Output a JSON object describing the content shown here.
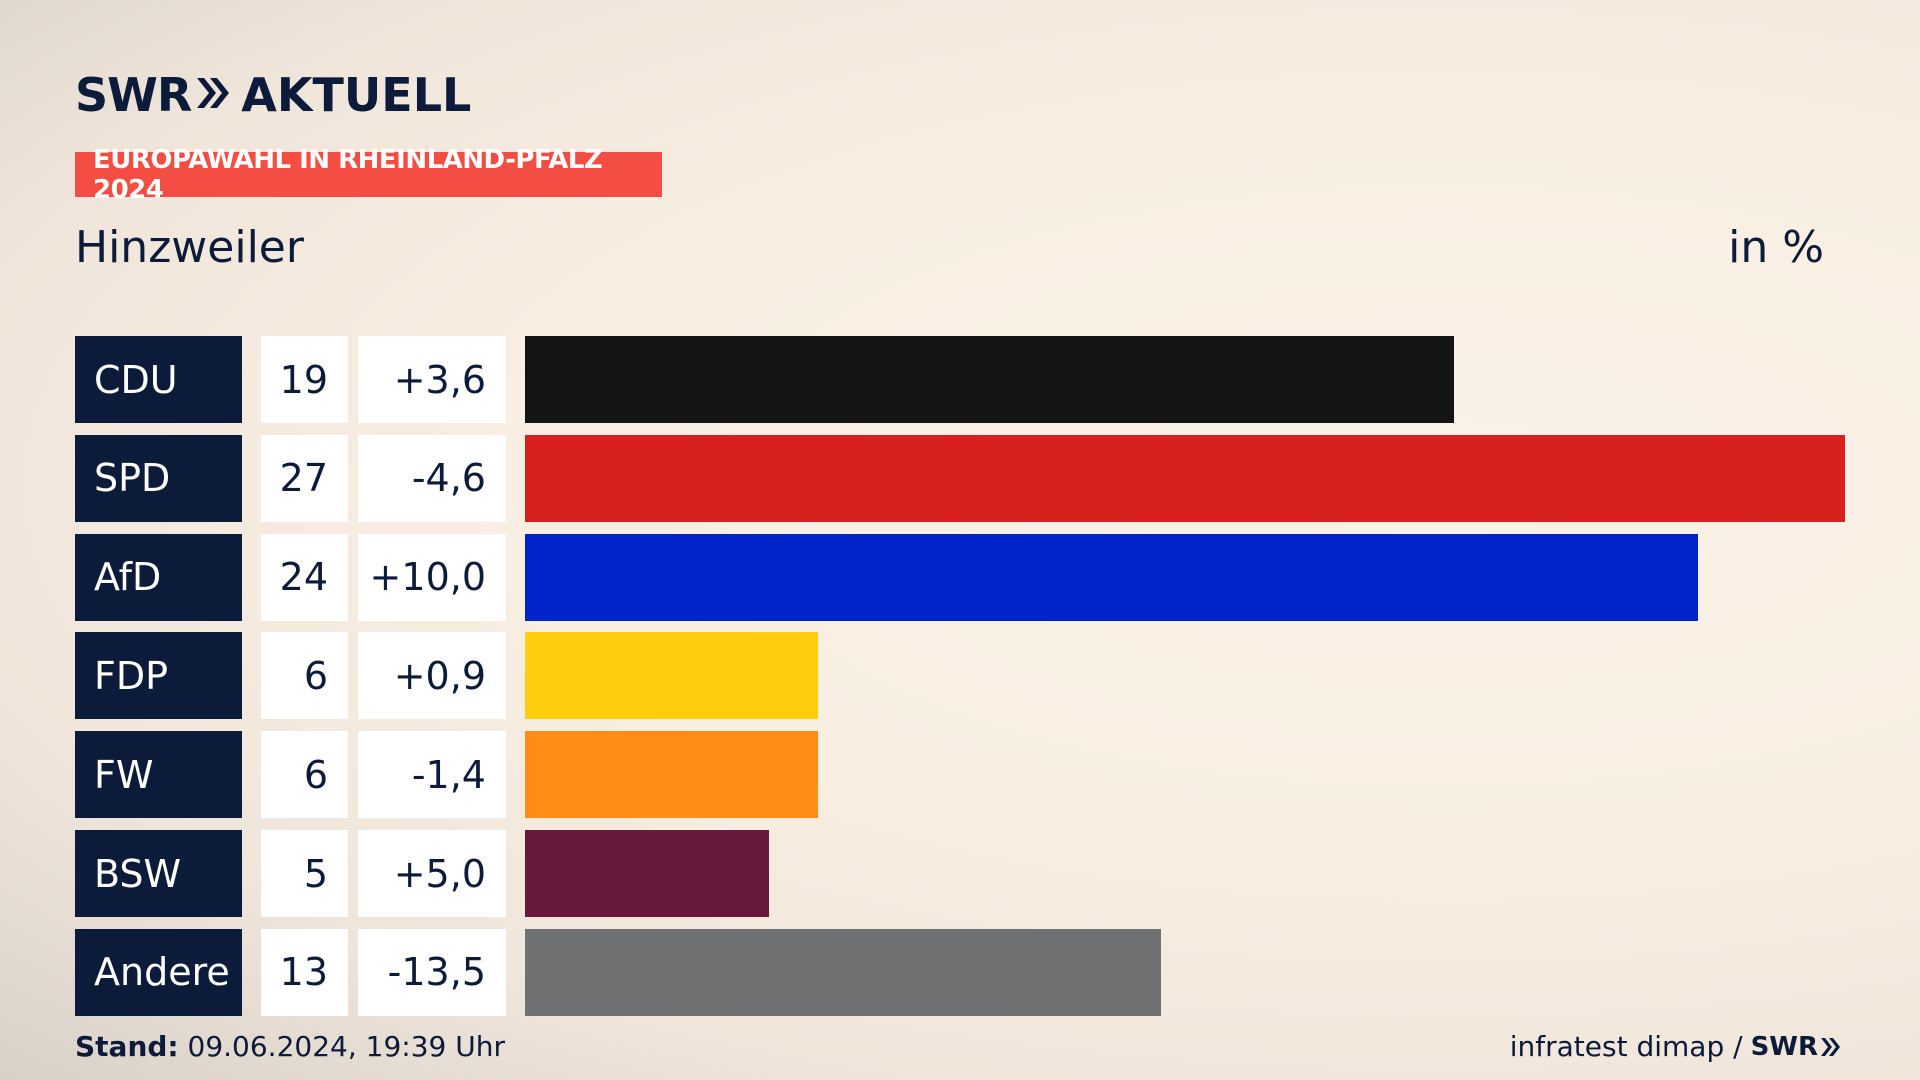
{
  "header": {
    "logo_swr": "SWR",
    "logo_aktuell": "AKTUELL",
    "banner": "EUROPAWAHL IN RHEINLAND-PFALZ 2024",
    "place": "Hinzweiler",
    "unit": "in %"
  },
  "footer": {
    "stand_label": "Stand:",
    "stand_value": " 09.06.2024, 19:39 Uhr",
    "source": "infratest dimap /",
    "source_logo": "SWR"
  },
  "colors": {
    "navy": "#0d1b3a",
    "banner": "#f44d43"
  },
  "chart_data": {
    "type": "bar",
    "categories": [
      "CDU",
      "SPD",
      "AfD",
      "FDP",
      "FW",
      "BSW",
      "Andere"
    ],
    "values": [
      19,
      27,
      24,
      6,
      6,
      5,
      13
    ],
    "value_labels": [
      "19",
      "27",
      "24",
      "6",
      "6",
      "5",
      "13"
    ],
    "diff_labels": [
      "+3,6",
      "-4,6",
      "+10,0",
      "+0,9",
      "-1,4",
      "+5,0",
      "-13,5"
    ],
    "diffs": [
      3.6,
      -4.6,
      10.0,
      0.9,
      -1.4,
      5.0,
      -13.5
    ],
    "colors": [
      "#141414",
      "#d8211f",
      "#0024c9",
      "#ffcd0b",
      "#ff8c17",
      "#6a193e",
      "#707173"
    ],
    "orientation": "horizontal",
    "xlim": [
      0,
      27
    ]
  }
}
